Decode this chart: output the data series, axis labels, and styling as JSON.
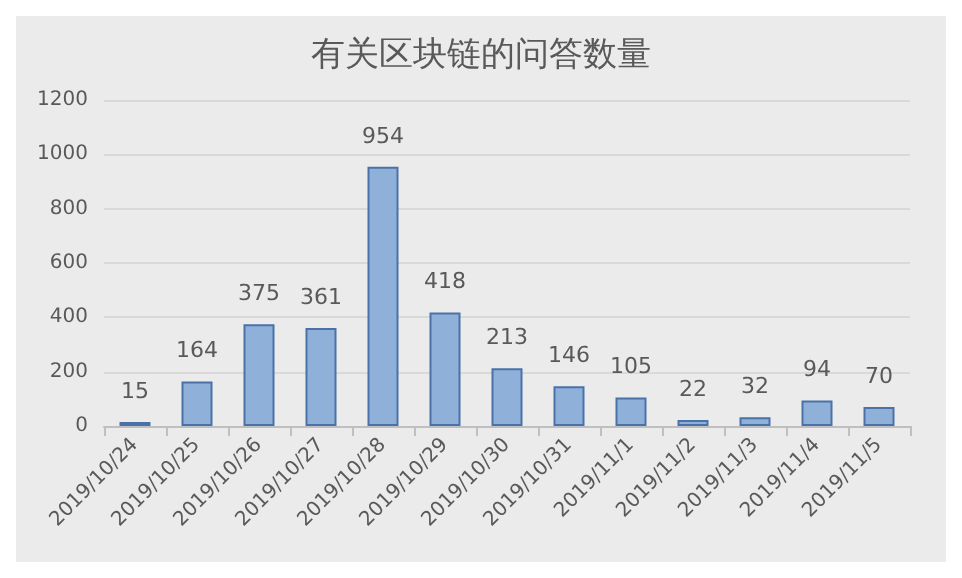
{
  "chart_data": {
    "type": "bar",
    "title": "有关区块链的问答数量",
    "categories": [
      "2019/10/24",
      "2019/10/25",
      "2019/10/26",
      "2019/10/27",
      "2019/10/28",
      "2019/10/29",
      "2019/10/30",
      "2019/10/31",
      "2019/11/1",
      "2019/11/2",
      "2019/11/3",
      "2019/11/4",
      "2019/11/5"
    ],
    "values": [
      15,
      164,
      375,
      361,
      954,
      418,
      213,
      146,
      105,
      22,
      32,
      94,
      70
    ],
    "color": "#8fb0d8",
    "ylim": [
      0,
      1200
    ],
    "yticks": [
      0,
      200,
      400,
      600,
      800,
      1000,
      1200
    ],
    "grid": "y",
    "data_labels": true
  }
}
